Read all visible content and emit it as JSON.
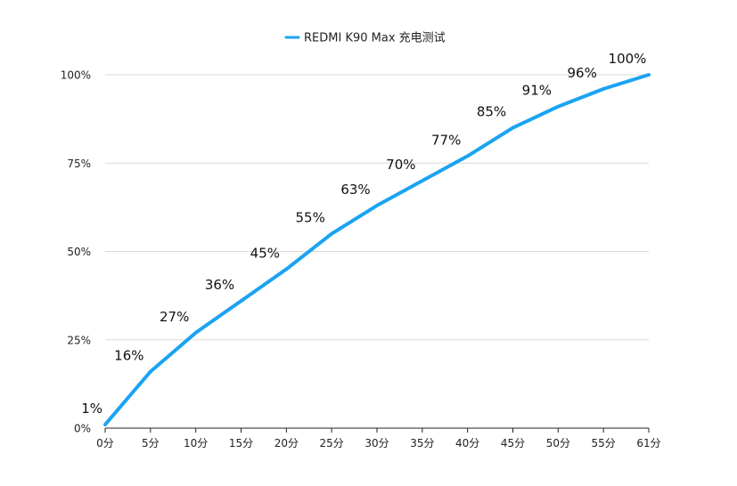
{
  "chart_data": {
    "type": "line",
    "title": "",
    "xlabel": "",
    "ylabel": "",
    "legend": {
      "position": "top-center"
    },
    "grid": true,
    "ylim": [
      0,
      100
    ],
    "yticks": [
      "0%",
      "25%",
      "50%",
      "75%",
      "100%"
    ],
    "x": [
      "0分",
      "5分",
      "10分",
      "15分",
      "20分",
      "25分",
      "30分",
      "35分",
      "40分",
      "45分",
      "50分",
      "55分",
      "61分"
    ],
    "series": [
      {
        "name": "REDMI K90 Max 充电测试",
        "color": "#1AA3F2",
        "values": [
          1,
          16,
          27,
          36,
          45,
          55,
          63,
          70,
          77,
          85,
          91,
          96,
          100
        ],
        "labels": [
          "1%",
          "16%",
          "27%",
          "36%",
          "45%",
          "55%",
          "63%",
          "70%",
          "77%",
          "85%",
          "91%",
          "96%",
          "100%"
        ]
      }
    ]
  }
}
